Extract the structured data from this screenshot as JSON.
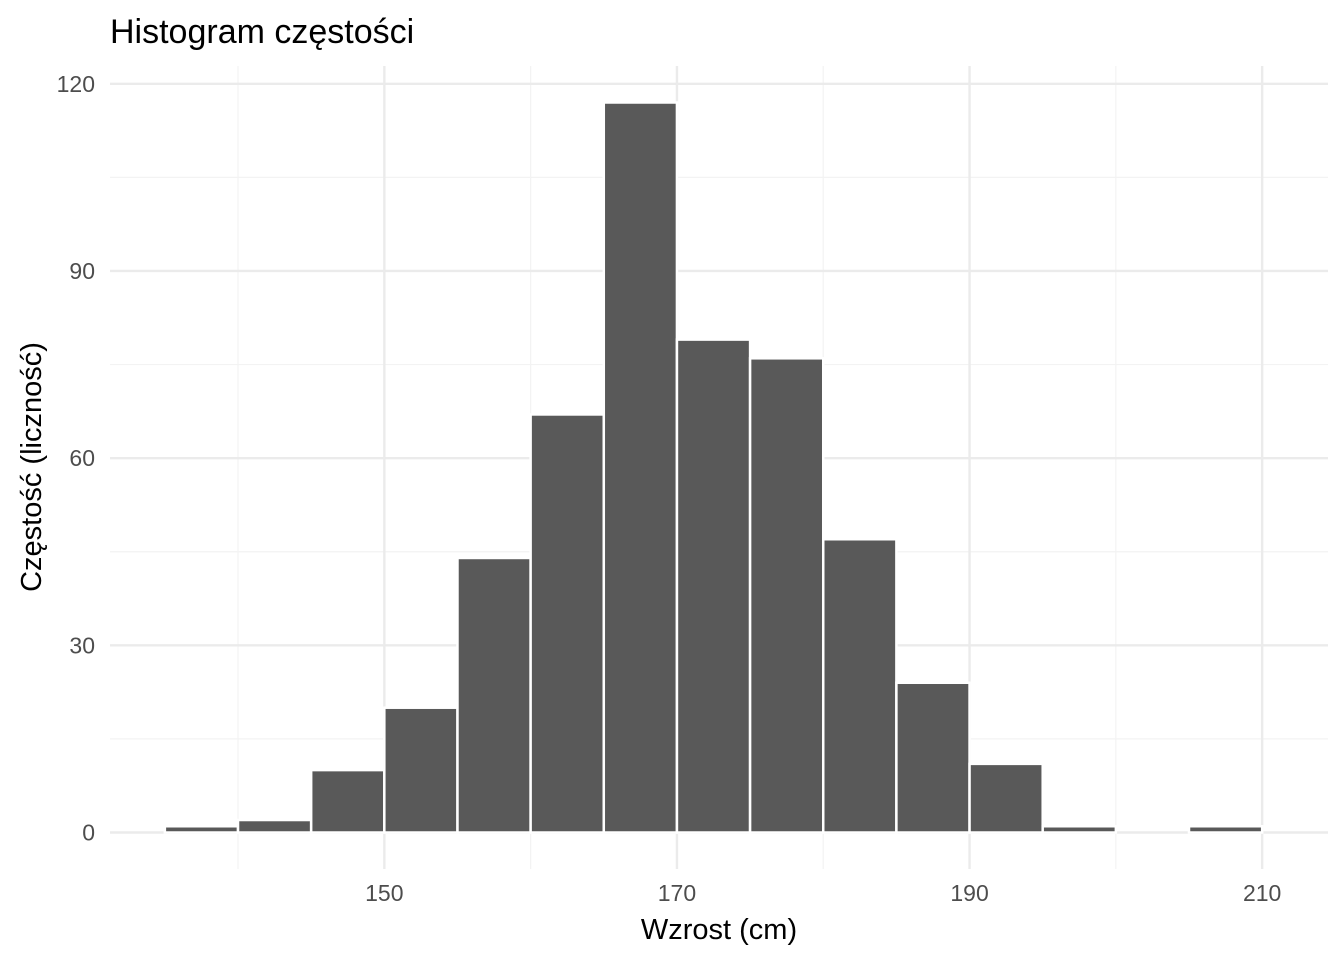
{
  "chart_data": {
    "type": "bar",
    "title": "Histogram częstości",
    "xlabel": "Wzrost (cm)",
    "ylabel": "Częstość (liczność)",
    "bin_width": 5,
    "bins": [
      {
        "x_start": 135,
        "x_end": 140,
        "count": 1
      },
      {
        "x_start": 140,
        "x_end": 145,
        "count": 2
      },
      {
        "x_start": 145,
        "x_end": 150,
        "count": 10
      },
      {
        "x_start": 150,
        "x_end": 155,
        "count": 20
      },
      {
        "x_start": 155,
        "x_end": 160,
        "count": 44
      },
      {
        "x_start": 160,
        "x_end": 165,
        "count": 67
      },
      {
        "x_start": 165,
        "x_end": 170,
        "count": 117
      },
      {
        "x_start": 170,
        "x_end": 175,
        "count": 79
      },
      {
        "x_start": 175,
        "x_end": 180,
        "count": 76
      },
      {
        "x_start": 180,
        "x_end": 185,
        "count": 47
      },
      {
        "x_start": 185,
        "x_end": 190,
        "count": 24
      },
      {
        "x_start": 190,
        "x_end": 195,
        "count": 11
      },
      {
        "x_start": 195,
        "x_end": 200,
        "count": 1
      },
      {
        "x_start": 200,
        "x_end": 205,
        "count": 0
      },
      {
        "x_start": 205,
        "x_end": 210,
        "count": 1
      }
    ],
    "xlim": [
      131.25,
      214.5
    ],
    "ylim": [
      -5.85,
      122.85
    ],
    "x_ticks": [
      150,
      170,
      190,
      210
    ],
    "x_minor_ticks": [
      140,
      160,
      180,
      200
    ],
    "y_ticks": [
      0,
      30,
      60,
      90,
      120
    ],
    "y_minor_ticks": [
      15,
      45,
      75,
      105
    ],
    "grid": true,
    "legend": "none",
    "bar_color": "#595959",
    "bar_outline_color": "#ffffff"
  }
}
